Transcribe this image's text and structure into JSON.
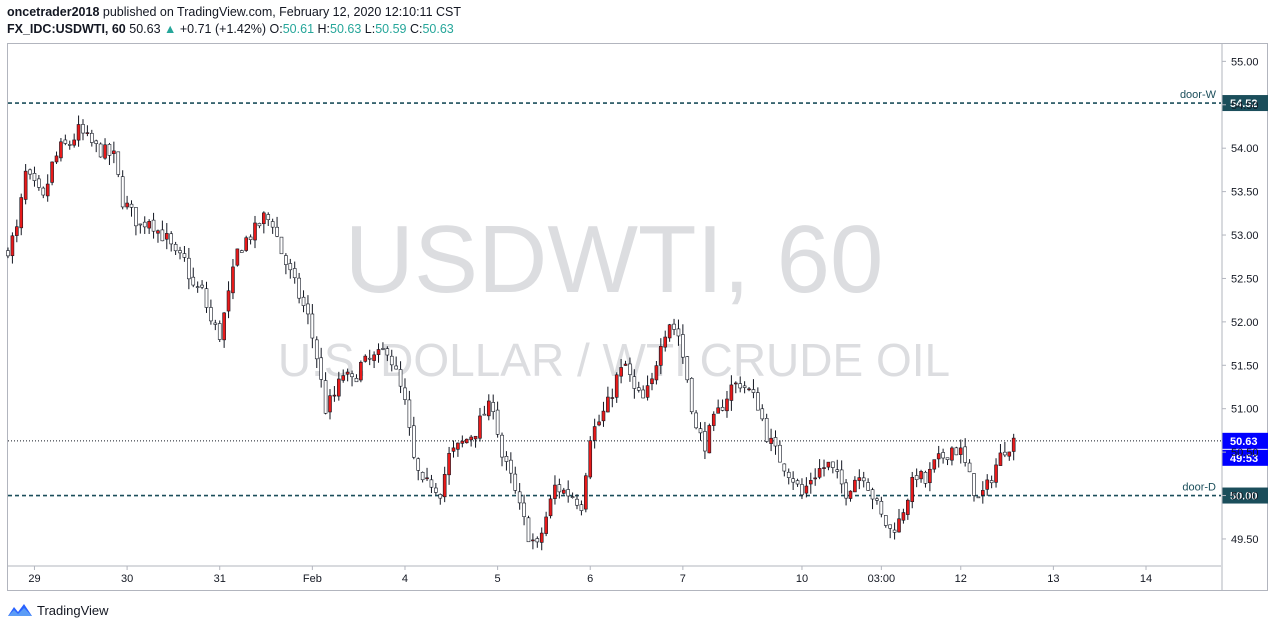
{
  "header": {
    "author": "oncetrader2018",
    "published_text": "published on TradingView.com, February 12, 2020 12:10:11 CST",
    "symbol": "FX_IDC:USDWTI, 60",
    "last": "50.63",
    "up_arrow": "▲",
    "change": "+0.71 (+1.42%)",
    "o_label": "O:",
    "o_val": "50.61",
    "h_label": "H:",
    "h_val": "50.63",
    "l_label": "L:",
    "l_val": "50.59",
    "c_label": "C:",
    "c_val": "50.63"
  },
  "watermark": {
    "line1": "USDWTI, 60",
    "line2": "U.S. DOLLAR / WTI CRUDE OIL"
  },
  "footer": {
    "brand": "TradingView"
  },
  "colors": {
    "up": "#26a69a",
    "down": "#e81a1a",
    "candle_outline": "#131722",
    "level_line": "#1b4e5b",
    "price_tag": "#0000ff"
  },
  "chart_data": {
    "type": "candlestick",
    "title": "USDWTI, 60",
    "ylim": [
      49.2,
      55.2
    ],
    "y_ticks": [
      "55.00",
      "54.50",
      "54.00",
      "53.50",
      "53.00",
      "52.50",
      "52.00",
      "51.50",
      "51.00",
      "50.50",
      "50.00",
      "49.50"
    ],
    "y_tick_values": [
      55.0,
      54.5,
      54.0,
      53.5,
      53.0,
      52.5,
      52.0,
      51.5,
      51.0,
      50.5,
      50.0,
      49.5
    ],
    "x_ticks": [
      {
        "label": "29",
        "index": 6
      },
      {
        "label": "30",
        "index": 27
      },
      {
        "label": "31",
        "index": 48
      },
      {
        "label": "Feb",
        "index": 69
      },
      {
        "label": "4",
        "index": 90
      },
      {
        "label": "5",
        "index": 111
      },
      {
        "label": "6",
        "index": 132
      },
      {
        "label": "7",
        "index": 153
      },
      {
        "label": "10",
        "index": 180
      },
      {
        "label": "03:00",
        "index": 198
      },
      {
        "label": "12",
        "index": 216
      },
      {
        "label": "13",
        "index": 237
      },
      {
        "label": "14",
        "index": 258
      }
    ],
    "index_range": [
      0,
      275
    ],
    "levels": [
      {
        "name": "door-W",
        "value": 54.52,
        "tag": "54.52"
      },
      {
        "name": "door-D",
        "value": 50.0,
        "tag": "50.00"
      }
    ],
    "last_price": {
      "value": 50.63,
      "tag": "50.63",
      "countdown": "49:53"
    },
    "close_keypoints": [
      [
        0,
        52.85
      ],
      [
        2,
        53.05
      ],
      [
        4,
        53.7
      ],
      [
        6,
        53.55
      ],
      [
        8,
        53.4
      ],
      [
        10,
        53.8
      ],
      [
        12,
        54.0
      ],
      [
        14,
        54.05
      ],
      [
        16,
        54.2
      ],
      [
        18,
        54.1
      ],
      [
        20,
        54.0
      ],
      [
        22,
        53.95
      ],
      [
        24,
        53.9
      ],
      [
        26,
        53.4
      ],
      [
        28,
        53.25
      ],
      [
        30,
        53.1
      ],
      [
        32,
        53.2
      ],
      [
        34,
        53.05
      ],
      [
        36,
        52.95
      ],
      [
        38,
        52.75
      ],
      [
        40,
        52.7
      ],
      [
        42,
        52.4
      ],
      [
        44,
        52.35
      ],
      [
        46,
        52.0
      ],
      [
        48,
        51.85
      ],
      [
        50,
        52.3
      ],
      [
        52,
        52.8
      ],
      [
        54,
        52.95
      ],
      [
        56,
        53.05
      ],
      [
        58,
        53.2
      ],
      [
        60,
        53.15
      ],
      [
        62,
        52.8
      ],
      [
        64,
        52.55
      ],
      [
        66,
        52.3
      ],
      [
        68,
        52.05
      ],
      [
        70,
        51.6
      ],
      [
        72,
        51.0
      ],
      [
        74,
        51.15
      ],
      [
        76,
        51.4
      ],
      [
        78,
        51.3
      ],
      [
        80,
        51.5
      ],
      [
        82,
        51.55
      ],
      [
        84,
        51.6
      ],
      [
        86,
        51.7
      ],
      [
        88,
        51.4
      ],
      [
        90,
        51.05
      ],
      [
        92,
        50.4
      ],
      [
        94,
        50.1
      ],
      [
        96,
        50.15
      ],
      [
        98,
        50.05
      ],
      [
        100,
        50.45
      ],
      [
        102,
        50.55
      ],
      [
        104,
        50.65
      ],
      [
        106,
        50.75
      ],
      [
        108,
        50.95
      ],
      [
        110,
        51.05
      ],
      [
        112,
        50.45
      ],
      [
        114,
        50.2
      ],
      [
        116,
        49.85
      ],
      [
        118,
        49.55
      ],
      [
        120,
        49.4
      ],
      [
        122,
        49.75
      ],
      [
        124,
        50.1
      ],
      [
        126,
        50.05
      ],
      [
        128,
        50.0
      ],
      [
        130,
        49.9
      ],
      [
        132,
        50.7
      ],
      [
        134,
        50.85
      ],
      [
        136,
        51.05
      ],
      [
        138,
        51.35
      ],
      [
        140,
        51.5
      ],
      [
        142,
        51.2
      ],
      [
        144,
        51.1
      ],
      [
        146,
        51.3
      ],
      [
        148,
        51.8
      ],
      [
        150,
        52.0
      ],
      [
        152,
        51.85
      ],
      [
        154,
        51.35
      ],
      [
        156,
        50.75
      ],
      [
        158,
        50.6
      ],
      [
        160,
        50.85
      ],
      [
        162,
        51.05
      ],
      [
        164,
        51.25
      ],
      [
        166,
        51.3
      ],
      [
        168,
        51.2
      ],
      [
        170,
        51.05
      ],
      [
        172,
        50.7
      ],
      [
        174,
        50.5
      ],
      [
        176,
        50.35
      ],
      [
        178,
        50.2
      ],
      [
        180,
        50.0
      ],
      [
        182,
        50.2
      ],
      [
        184,
        50.3
      ],
      [
        186,
        50.35
      ],
      [
        188,
        50.2
      ],
      [
        190,
        50.05
      ],
      [
        192,
        50.2
      ],
      [
        194,
        50.25
      ],
      [
        196,
        50.0
      ],
      [
        198,
        49.75
      ],
      [
        200,
        49.6
      ],
      [
        202,
        49.7
      ],
      [
        204,
        50.0
      ],
      [
        206,
        50.25
      ],
      [
        208,
        50.15
      ],
      [
        210,
        50.35
      ],
      [
        212,
        50.45
      ],
      [
        214,
        50.55
      ],
      [
        216,
        50.5
      ],
      [
        218,
        50.2
      ],
      [
        220,
        49.95
      ],
      [
        222,
        50.1
      ],
      [
        224,
        50.35
      ],
      [
        226,
        50.55
      ],
      [
        228,
        50.63
      ]
    ]
  }
}
